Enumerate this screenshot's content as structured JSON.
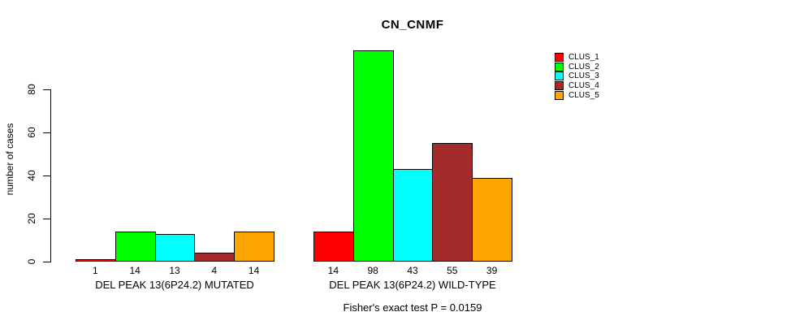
{
  "page": {
    "background_color": "#ffffff",
    "text_color": "#000000"
  },
  "chart_data": {
    "type": "bar",
    "title": "CN_CNMF",
    "xlabel": "",
    "ylabel": "number of cases",
    "ylim": [
      0,
      80
    ],
    "yticks": [
      0,
      20,
      40,
      60,
      80
    ],
    "grid": false,
    "legend_position": "right",
    "categories": [
      "DEL PEAK 13(6P24.2) MUTATED",
      "DEL PEAK 13(6P24.2) WILD-TYPE"
    ],
    "series": [
      {
        "name": "CLUS_1",
        "color": "#FF0000",
        "values": [
          1,
          14
        ]
      },
      {
        "name": "CLUS_2",
        "color": "#00FF00",
        "values": [
          14,
          98
        ]
      },
      {
        "name": "CLUS_3",
        "color": "#00FFFF",
        "values": [
          13,
          43
        ]
      },
      {
        "name": "CLUS_4",
        "color": "#A52A2A",
        "values": [
          4,
          55
        ]
      },
      {
        "name": "CLUS_5",
        "color": "#FFA500",
        "values": [
          14,
          39
        ]
      }
    ],
    "bar_value_labels": [
      [
        "1",
        "14",
        "13",
        "4",
        "14"
      ],
      [
        "14",
        "98",
        "43",
        "55",
        "39"
      ]
    ],
    "annotation": "Fisher's exact test P = 0.0159"
  }
}
